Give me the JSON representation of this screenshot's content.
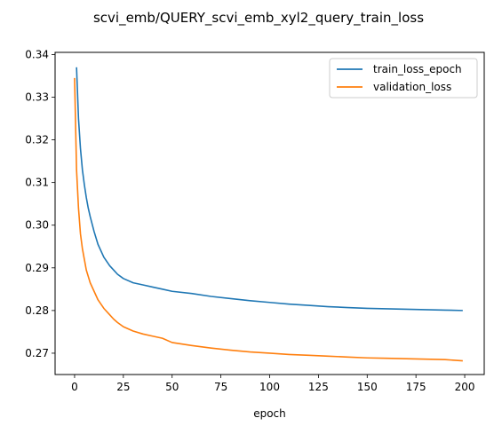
{
  "chart_data": {
    "type": "line",
    "title": "scvi_emb/QUERY_scvi_emb_xyl2_query_train_loss",
    "xlabel": "epoch",
    "ylabel": "",
    "xlim": [
      -10,
      210
    ],
    "ylim": [
      0.265,
      0.3405
    ],
    "xticks": [
      0,
      25,
      50,
      75,
      100,
      125,
      150,
      175,
      200
    ],
    "yticks": [
      0.27,
      0.28,
      0.29,
      0.3,
      0.31,
      0.32,
      0.33,
      0.34
    ],
    "grid": false,
    "legend_position": "top-right",
    "series": [
      {
        "name": "train_loss_epoch",
        "color": "#1f77b4",
        "x": [
          1,
          2,
          3,
          4,
          5,
          6,
          7,
          8,
          10,
          12,
          15,
          18,
          20,
          22,
          25,
          30,
          35,
          40,
          45,
          50,
          60,
          70,
          80,
          90,
          100,
          110,
          120,
          130,
          140,
          150,
          160,
          170,
          180,
          190,
          199
        ],
        "y": [
          0.337,
          0.325,
          0.318,
          0.313,
          0.3095,
          0.3065,
          0.304,
          0.302,
          0.2985,
          0.2955,
          0.2925,
          0.2905,
          0.2895,
          0.2885,
          0.2875,
          0.2865,
          0.286,
          0.2855,
          0.285,
          0.2845,
          0.284,
          0.2833,
          0.2828,
          0.2823,
          0.2819,
          0.2815,
          0.2812,
          0.2809,
          0.2807,
          0.2805,
          0.2804,
          0.2803,
          0.2802,
          0.2801,
          0.28
        ]
      },
      {
        "name": "validation_loss",
        "color": "#ff7f0e",
        "x": [
          0,
          1,
          2,
          3,
          4,
          5,
          6,
          7,
          8,
          10,
          12,
          15,
          18,
          20,
          22,
          25,
          30,
          35,
          40,
          45,
          50,
          60,
          70,
          80,
          90,
          100,
          110,
          120,
          130,
          140,
          150,
          160,
          170,
          180,
          190,
          199
        ],
        "y": [
          0.3345,
          0.313,
          0.304,
          0.298,
          0.2945,
          0.292,
          0.2895,
          0.288,
          0.2865,
          0.2845,
          0.2825,
          0.2805,
          0.279,
          0.278,
          0.2772,
          0.2762,
          0.2752,
          0.2745,
          0.274,
          0.2735,
          0.2725,
          0.2718,
          0.2712,
          0.2707,
          0.2703,
          0.27,
          0.2697,
          0.2695,
          0.2693,
          0.2691,
          0.2689,
          0.2688,
          0.2687,
          0.2686,
          0.2685,
          0.2682
        ]
      }
    ]
  }
}
